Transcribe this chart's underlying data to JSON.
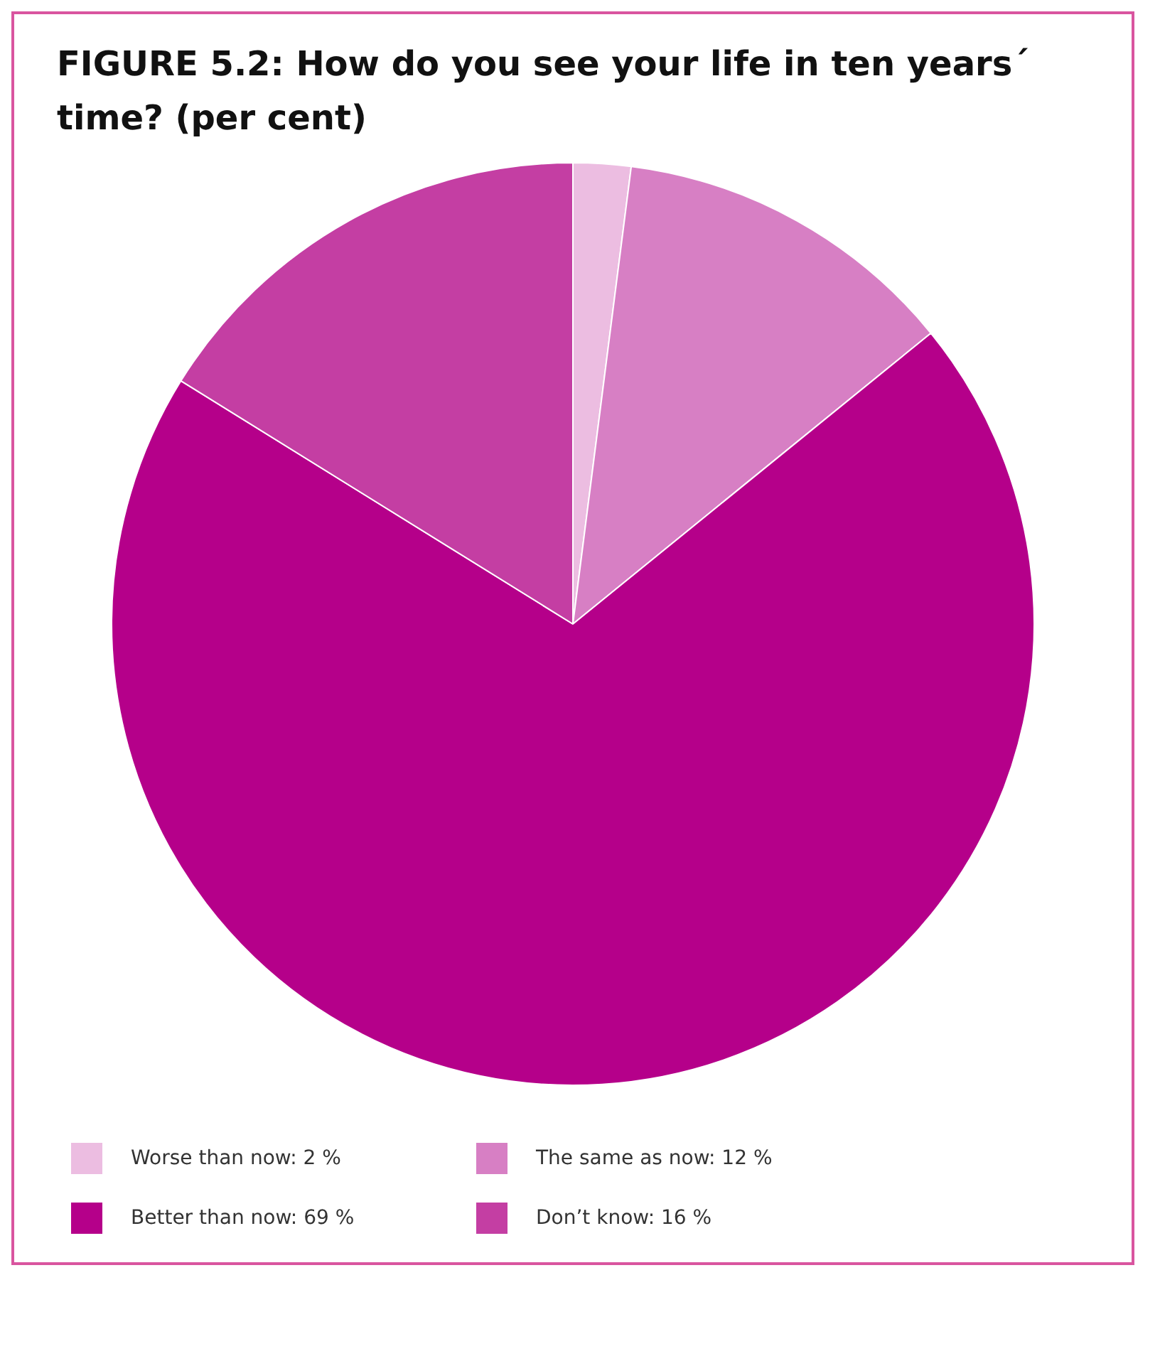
{
  "chart_data": {
    "type": "pie",
    "title": "FIGURE 5.2: How do you see your life in ten years´ time? (per cent)",
    "categories": [
      "Worse than now",
      "The same as now",
      "Better than now",
      "Don’t know"
    ],
    "values": [
      2,
      12,
      69,
      16
    ],
    "value_labels": [
      "2 %",
      "12 %",
      "69 %",
      "16 %"
    ],
    "colors": [
      "#ecbde1",
      "#d77fc4",
      "#b5008a",
      "#c43ea3"
    ],
    "legend": "bottom"
  }
}
